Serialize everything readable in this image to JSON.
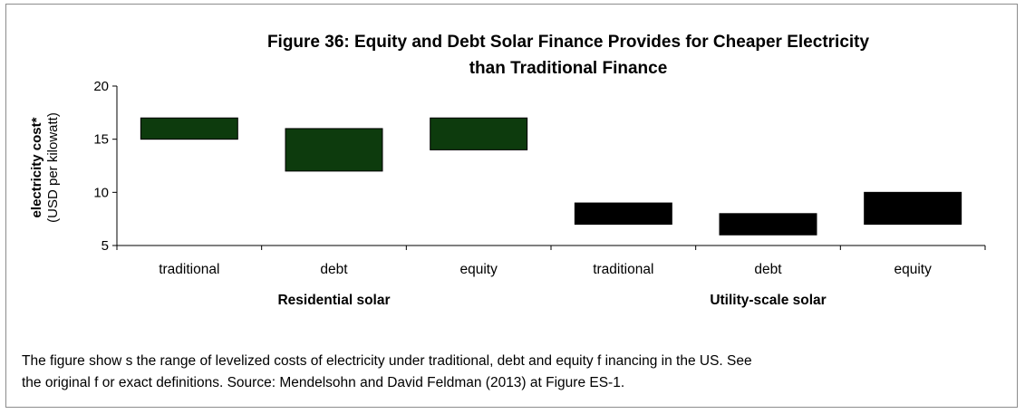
{
  "chart_data": {
    "type": "bar",
    "subtype": "floating-range",
    "title_line1": "Figure 36: Equity and Debt Solar Finance Provides for Cheaper Electricity",
    "title_line2": "than Traditional Finance",
    "ylabel_bold": "electricity cost*",
    "ylabel_unit": "(USD per kilowatt)",
    "ylim": [
      5,
      20
    ],
    "yticks": [
      "5",
      "10",
      "15",
      "20"
    ],
    "grid": false,
    "groups": [
      {
        "label": "Residential solar",
        "color": "#0d3b0d",
        "bars": [
          {
            "category": "traditional",
            "low": 15,
            "high": 17
          },
          {
            "category": "debt",
            "low": 12,
            "high": 16
          },
          {
            "category": "equity",
            "low": 14,
            "high": 17
          }
        ]
      },
      {
        "label": "Utility-scale solar",
        "color": "#000000",
        "bars": [
          {
            "category": "traditional",
            "low": 7,
            "high": 9
          },
          {
            "category": "debt",
            "low": 6,
            "high": 8
          },
          {
            "category": "equity",
            "low": 7,
            "high": 10
          }
        ]
      }
    ]
  },
  "caption": {
    "line1": "The figure show s the range of levelized costs of electricity under traditional, debt and equity f inancing in the US. See",
    "line2": "the original f or exact definitions. Source: Mendelsohn and David Feldman (2013) at Figure ES-1."
  }
}
